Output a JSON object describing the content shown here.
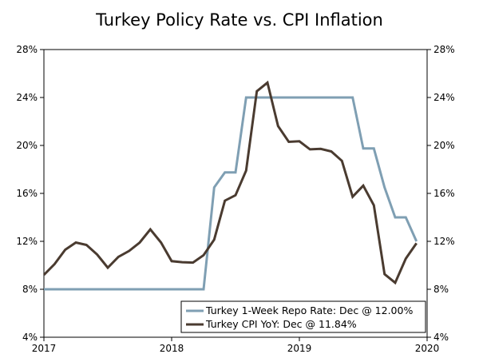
{
  "chart_data": {
    "type": "line",
    "title": "Turkey Policy Rate vs. CPI Inflation",
    "xlabel": "",
    "ylabel": "",
    "xlim": [
      2017.0,
      2020.0
    ],
    "ylim": [
      4,
      28
    ],
    "x_ticks": [
      2017,
      2018,
      2019,
      2020
    ],
    "x_tick_labels": [
      "2017",
      "2018",
      "2019",
      "2020"
    ],
    "y_ticks": [
      4,
      8,
      12,
      16,
      20,
      24,
      28
    ],
    "y_tick_labels_left": [
      "4%",
      "8%",
      "12%",
      "16%",
      "20%",
      "24%",
      "28%"
    ],
    "y_tick_labels_right": [
      "4%",
      "8%",
      "12%",
      "16%",
      "20%",
      "24%",
      "28%"
    ],
    "grid": false,
    "legend_position": "bottom-right",
    "series": [
      {
        "name": "Turkey 1-Week Repo Rate: Dec @ 12.00%",
        "color": "#7f9fb3",
        "x": [
          2017.0,
          2017.5,
          2018.0,
          2018.25,
          2018.333,
          2018.417,
          2018.5,
          2018.583,
          2018.667,
          2018.75,
          2019.0,
          2019.25,
          2019.417,
          2019.5,
          2019.583,
          2019.667,
          2019.75,
          2019.833,
          2019.917
        ],
        "values": [
          8.0,
          8.0,
          8.0,
          8.0,
          16.5,
          17.75,
          17.75,
          24.0,
          24.0,
          24.0,
          24.0,
          24.0,
          24.0,
          19.75,
          19.75,
          16.5,
          14.0,
          14.0,
          12.0
        ]
      },
      {
        "name": "Turkey CPI YoY: Dec @ 11.84%",
        "color": "#4a3b30",
        "x": [
          2017.0,
          2017.083,
          2017.167,
          2017.25,
          2017.333,
          2017.417,
          2017.5,
          2017.583,
          2017.667,
          2017.75,
          2017.833,
          2017.917,
          2018.0,
          2018.083,
          2018.167,
          2018.25,
          2018.333,
          2018.417,
          2018.5,
          2018.583,
          2018.667,
          2018.75,
          2018.833,
          2018.917,
          2019.0,
          2019.083,
          2019.167,
          2019.25,
          2019.333,
          2019.417,
          2019.5,
          2019.583,
          2019.667,
          2019.75,
          2019.833,
          2019.917
        ],
        "values": [
          9.2,
          10.1,
          11.3,
          11.9,
          11.7,
          10.9,
          9.8,
          10.7,
          11.2,
          11.9,
          13.0,
          11.9,
          10.35,
          10.26,
          10.23,
          10.85,
          12.15,
          15.39,
          15.85,
          17.9,
          24.52,
          25.24,
          21.62,
          20.3,
          20.35,
          19.67,
          19.71,
          19.5,
          18.71,
          15.72,
          16.65,
          15.01,
          9.26,
          8.55,
          10.56,
          11.84
        ]
      }
    ]
  }
}
